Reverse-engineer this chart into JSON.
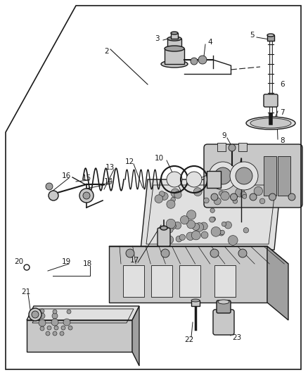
{
  "bg_color": "#ffffff",
  "fg_color": "#1a1a1a",
  "gray1": "#c8c8c8",
  "gray2": "#a0a0a0",
  "gray3": "#e0e0e0",
  "gray4": "#888888",
  "lw_main": 1.0,
  "lw_thin": 0.6,
  "lw_thick": 1.5,
  "label_fs": 7.5,
  "figw": 4.38,
  "figh": 5.33,
  "dpi": 100
}
